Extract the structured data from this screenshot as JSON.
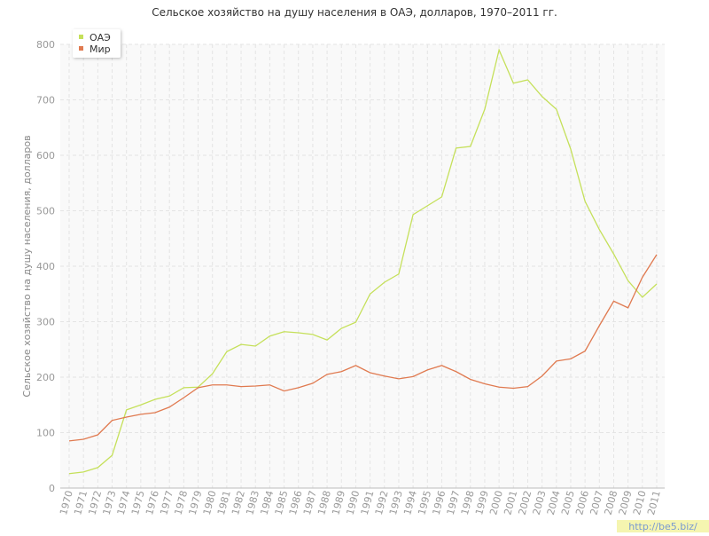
{
  "chart_data": {
    "type": "line",
    "title": "Сельское хозяйство на душу населения в ОАЭ, долларов, 1970–2011 гг.",
    "y_label": "Сельское хозяйство на душу населения, долларов",
    "categories": [
      "1970",
      "1971",
      "1972",
      "1973",
      "1974",
      "1975",
      "1976",
      "1977",
      "1978",
      "1979",
      "1980",
      "1981",
      "1982",
      "1983",
      "1984",
      "1985",
      "1986",
      "1987",
      "1988",
      "1989",
      "1990",
      "1991",
      "1992",
      "1993",
      "1994",
      "1995",
      "1996",
      "1997",
      "1998",
      "1999",
      "2000",
      "2001",
      "2002",
      "2003",
      "2004",
      "2005",
      "2006",
      "2007",
      "2008",
      "2009",
      "2010",
      "2011"
    ],
    "series": [
      {
        "name": "ОАЭ",
        "color": "#c5e05a",
        "values": [
          26,
          29,
          37,
          59,
          141,
          150,
          160,
          166,
          181,
          182,
          206,
          246,
          259,
          256,
          274,
          282,
          280,
          277,
          267,
          288,
          299,
          350,
          371,
          386,
          493,
          509,
          525,
          613,
          616,
          683,
          790,
          730,
          736,
          706,
          683,
          611,
          517,
          466,
          422,
          374,
          344,
          368
        ]
      },
      {
        "name": "Мир",
        "color": "#e07a50",
        "values": [
          85,
          88,
          96,
          122,
          128,
          133,
          136,
          146,
          163,
          181,
          186,
          186,
          183,
          184,
          186,
          175,
          181,
          189,
          205,
          210,
          221,
          208,
          202,
          197,
          201,
          213,
          221,
          210,
          196,
          188,
          182,
          180,
          183,
          202,
          229,
          233,
          247,
          293,
          337,
          325,
          380,
          421
        ]
      }
    ],
    "ylim": [
      0,
      800
    ],
    "yticks": [
      0,
      100,
      200,
      300,
      400,
      500,
      600,
      700,
      800
    ],
    "grid": true,
    "legend": "top-left",
    "watermark": "http://be5.biz/"
  }
}
